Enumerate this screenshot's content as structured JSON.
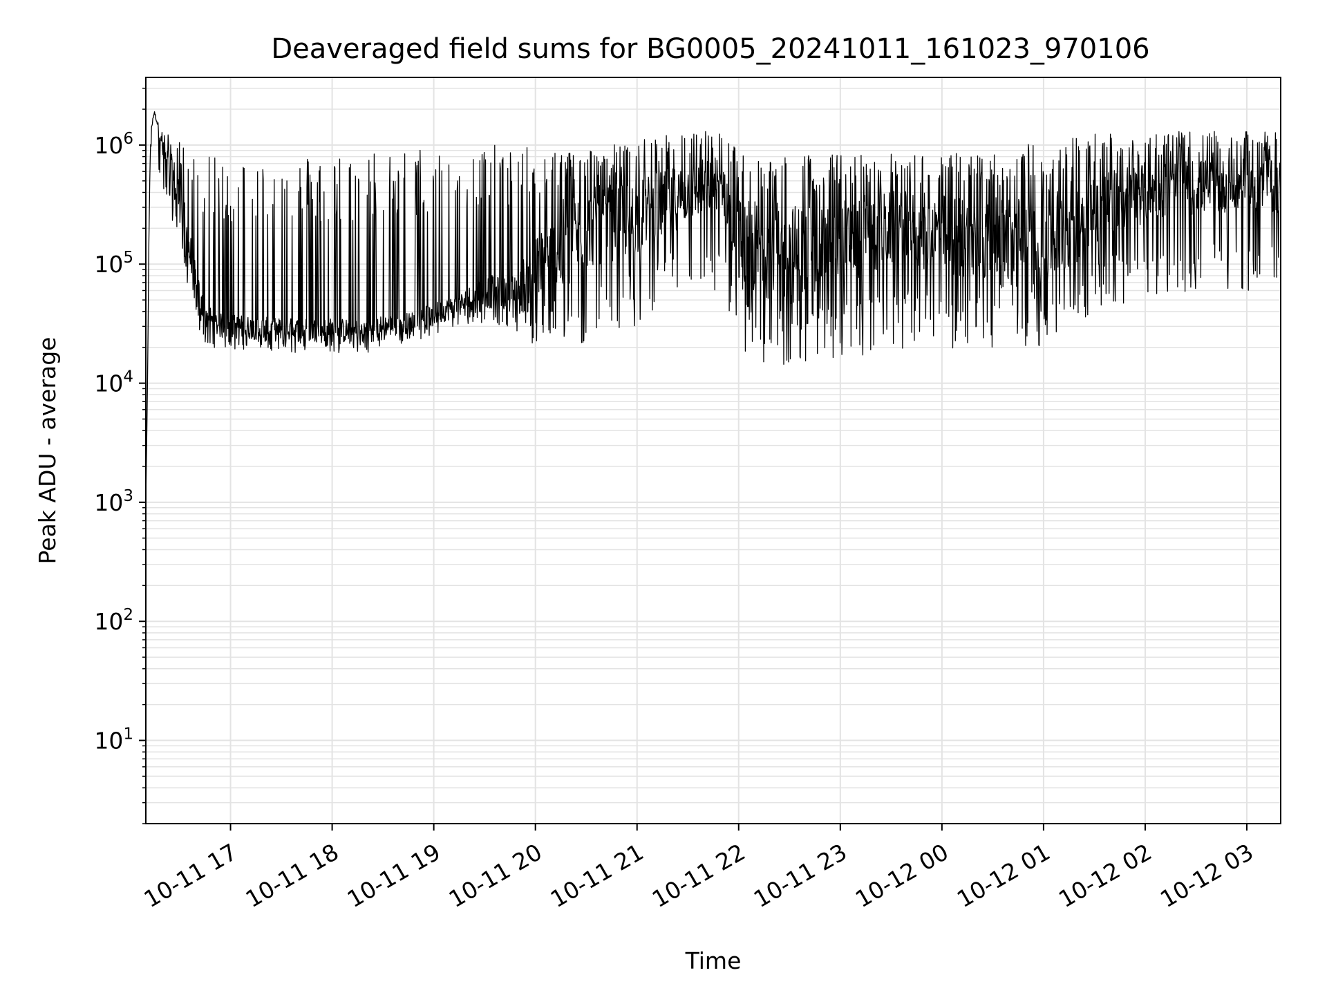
{
  "chart_data": {
    "type": "line",
    "title": "Deaveraged field sums for BG0005_20241011_161023_970106",
    "xlabel": "Time",
    "ylabel": "Peak ADU - average",
    "yscale": "log",
    "ylim": [
      2,
      3700000
    ],
    "xlim": [
      "2024-10-11 16:10",
      "2024-10-12 03:20"
    ],
    "grid": true,
    "legend": "none",
    "colors": {
      "line": "#000000",
      "grid": "#e3e3e3",
      "axes": "#000000",
      "background": "#ffffff"
    },
    "y_ticks": [
      {
        "base": "10",
        "exp": "1"
      },
      {
        "base": "10",
        "exp": "2"
      },
      {
        "base": "10",
        "exp": "3"
      },
      {
        "base": "10",
        "exp": "4"
      },
      {
        "base": "10",
        "exp": "5"
      },
      {
        "base": "10",
        "exp": "6"
      }
    ],
    "x_ticks": [
      {
        "label": "10-11 17",
        "t": "2024-10-11 17:00"
      },
      {
        "label": "10-11 18",
        "t": "2024-10-11 18:00"
      },
      {
        "label": "10-11 19",
        "t": "2024-10-11 19:00"
      },
      {
        "label": "10-11 20",
        "t": "2024-10-11 20:00"
      },
      {
        "label": "10-11 21",
        "t": "2024-10-11 21:00"
      },
      {
        "label": "10-11 22",
        "t": "2024-10-11 22:00"
      },
      {
        "label": "10-11 23",
        "t": "2024-10-11 23:00"
      },
      {
        "label": "10-12 00",
        "t": "2024-10-12 00:00"
      },
      {
        "label": "10-12 01",
        "t": "2024-10-12 01:00"
      },
      {
        "label": "10-12 02",
        "t": "2024-10-12 02:00"
      },
      {
        "label": "10-12 03",
        "t": "2024-10-12 03:00"
      }
    ],
    "series": [
      {
        "time": [
          "2024-10-11 16:10",
          "2024-10-11 16:11",
          "2024-10-11 16:12",
          "2024-10-11 16:13",
          "2024-10-11 16:15",
          "2024-10-11 16:17",
          "2024-10-11 16:20",
          "2024-10-11 16:25",
          "2024-10-11 16:30",
          "2024-10-11 16:35",
          "2024-10-11 16:40",
          "2024-10-11 16:45",
          "2024-10-11 16:50",
          "2024-10-11 16:55",
          "2024-10-11 17:00",
          "2024-10-11 17:15",
          "2024-10-11 17:30",
          "2024-10-11 17:45",
          "2024-10-11 18:00",
          "2024-10-11 18:15",
          "2024-10-11 18:30",
          "2024-10-11 18:45",
          "2024-10-11 19:00",
          "2024-10-11 19:15",
          "2024-10-11 19:30",
          "2024-10-11 19:45",
          "2024-10-11 20:00",
          "2024-10-11 20:30",
          "2024-10-11 21:00",
          "2024-10-11 21:30",
          "2024-10-11 21:50",
          "2024-10-11 22:00",
          "2024-10-11 22:30",
          "2024-10-11 23:00",
          "2024-10-11 23:30",
          "2024-10-12 00:00",
          "2024-10-12 00:30",
          "2024-10-12 01:00",
          "2024-10-12 01:30",
          "2024-10-12 02:00",
          "2024-10-12 02:30",
          "2024-10-12 03:00",
          "2024-10-12 03:20"
        ],
        "center": [
          1000,
          10000,
          300000,
          1300000,
          1900000,
          1500000,
          900000,
          600000,
          350000,
          150000,
          60000,
          38000,
          32000,
          30000,
          30000,
          29000,
          28000,
          28000,
          28000,
          27000,
          30000,
          32000,
          38000,
          45000,
          60000,
          55000,
          80000,
          200000,
          250000,
          400000,
          500000,
          150000,
          120000,
          150000,
          200000,
          180000,
          150000,
          150000,
          300000,
          400000,
          450000,
          450000,
          450000
        ],
        "low": [
          1000,
          10000,
          250000,
          900000,
          1200000,
          700000,
          350000,
          250000,
          150000,
          60000,
          30000,
          22000,
          20000,
          19000,
          19000,
          19000,
          18000,
          18000,
          18000,
          17000,
          20000,
          22000,
          25000,
          30000,
          32000,
          30000,
          18000,
          20000,
          30000,
          60000,
          40000,
          15000,
          13000,
          14000,
          20000,
          18000,
          20000,
          20000,
          40000,
          50000,
          60000,
          60000,
          60000
        ],
        "high": [
          1000,
          10000,
          350000,
          1400000,
          2000000,
          1700000,
          1300000,
          1200000,
          1100000,
          900000,
          800000,
          800000,
          800000,
          800000,
          800000,
          800000,
          800000,
          850000,
          900000,
          900000,
          950000,
          950000,
          1000000,
          1000000,
          1000000,
          1000000,
          950000,
          950000,
          1100000,
          1300000,
          1400000,
          900000,
          850000,
          850000,
          850000,
          850000,
          900000,
          1100000,
          1300000,
          1300000,
          1300000,
          1300000,
          1300000
        ]
      }
    ]
  }
}
